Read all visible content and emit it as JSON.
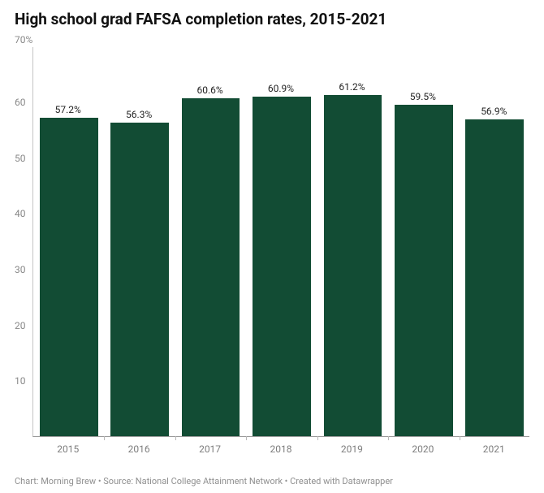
{
  "title": "High school grad FAFSA completion rates, 2015-2021",
  "footer": "Chart: Morning Brew • Source: National College Attainment Network • Created with Datawrapper",
  "chart": {
    "type": "bar",
    "categories": [
      "2015",
      "2016",
      "2017",
      "2018",
      "2019",
      "2020",
      "2021"
    ],
    "values": [
      57.2,
      56.3,
      60.6,
      60.9,
      61.2,
      59.5,
      56.9
    ],
    "value_labels": [
      "57.2%",
      "56.3%",
      "60.6%",
      "60.9%",
      "61.2%",
      "59.5%",
      "56.9%"
    ],
    "bar_color": "#124c34",
    "background_color": "#ffffff",
    "ylim": [
      0,
      70
    ],
    "yticks": [
      10,
      20,
      30,
      40,
      50,
      60
    ],
    "ytop_label": "70%",
    "title_fontsize": 19,
    "title_color": "#111111",
    "axis_label_color": "#888888",
    "axis_label_fontsize": 12,
    "xlabel_fontsize": 12,
    "bar_label_fontsize": 12,
    "bar_label_color": "#222222",
    "footer_fontsize": 11,
    "footer_color": "#8f8f8f",
    "bar_width_ratio": 0.82,
    "axis_line_color": "#9a9a9a",
    "xtick_color": "#b8b8b8"
  }
}
